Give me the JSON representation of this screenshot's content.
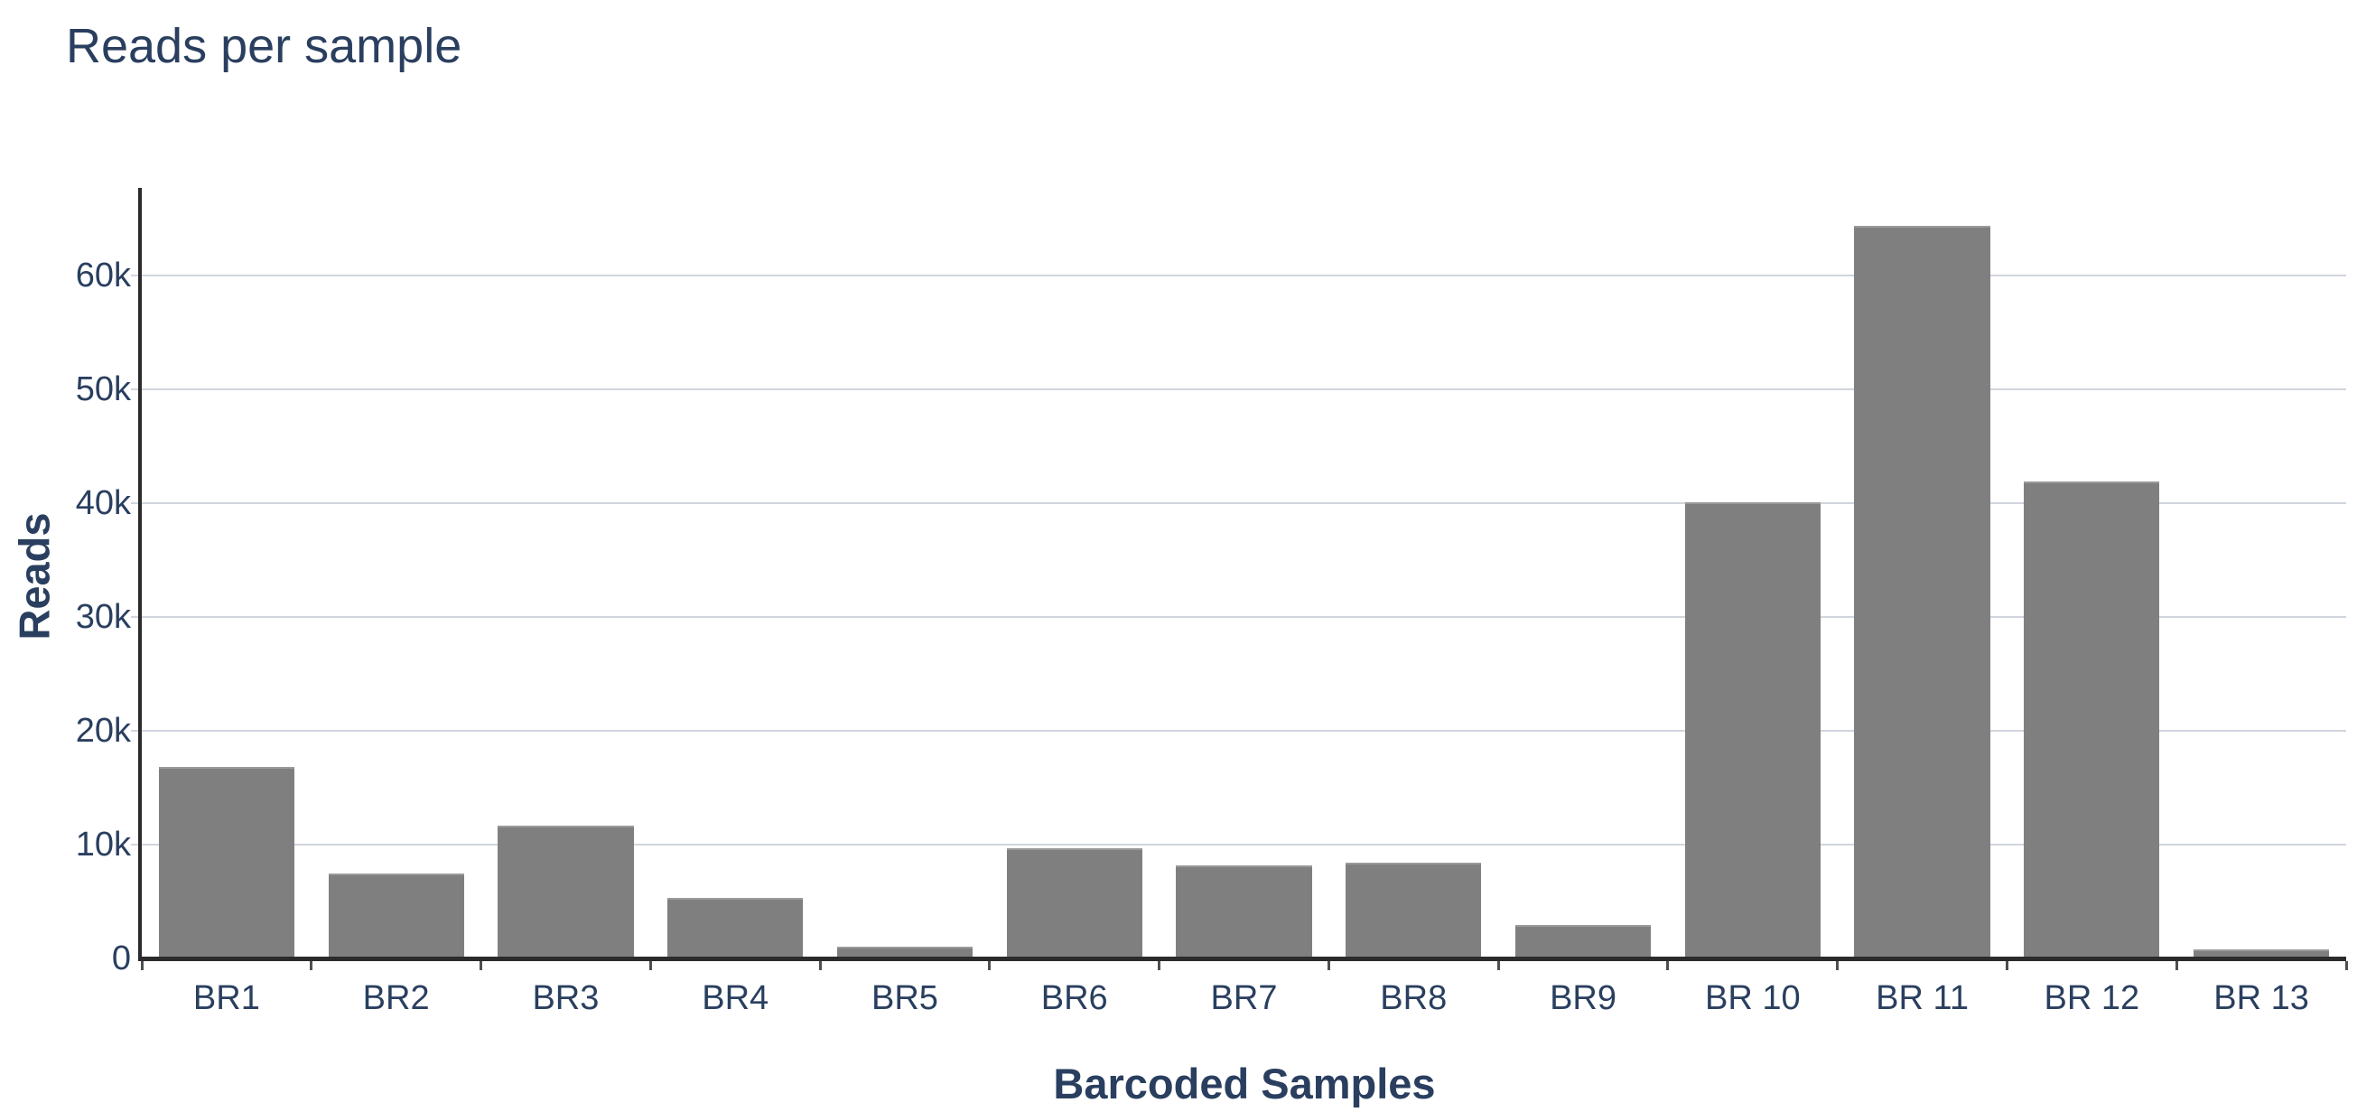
{
  "chart_data": {
    "type": "bar",
    "title": "Reads per sample",
    "xlabel": "Barcoded Samples",
    "ylabel": "Reads",
    "categories": [
      "BR1",
      "BR2",
      "BR3",
      "BR4",
      "BR5",
      "BR6",
      "BR7",
      "BR8",
      "BR9",
      "BR 10",
      "BR 11",
      "BR 12",
      "BR 13"
    ],
    "values": [
      16850,
      7500,
      11650,
      5300,
      1050,
      9650,
      8200,
      8450,
      2900,
      40100,
      64400,
      41900,
      800
    ],
    "ylim": [
      0,
      67700
    ],
    "yticks": [
      {
        "value": 0,
        "label": "0"
      },
      {
        "value": 10000,
        "label": "10k"
      },
      {
        "value": 20000,
        "label": "20k"
      },
      {
        "value": 30000,
        "label": "30k"
      },
      {
        "value": 40000,
        "label": "40k"
      },
      {
        "value": 50000,
        "label": "50k"
      },
      {
        "value": 60000,
        "label": "60k"
      }
    ],
    "grid": "horizontal",
    "legend": "none",
    "bargap": 0.2,
    "colors": {
      "bar": "#7f7f7f",
      "text": "#2a3f5f",
      "grid": "#d0d5de",
      "axis": "#2b2b2b",
      "xtick": "#4f4f4f",
      "background": "#ffffff"
    }
  }
}
